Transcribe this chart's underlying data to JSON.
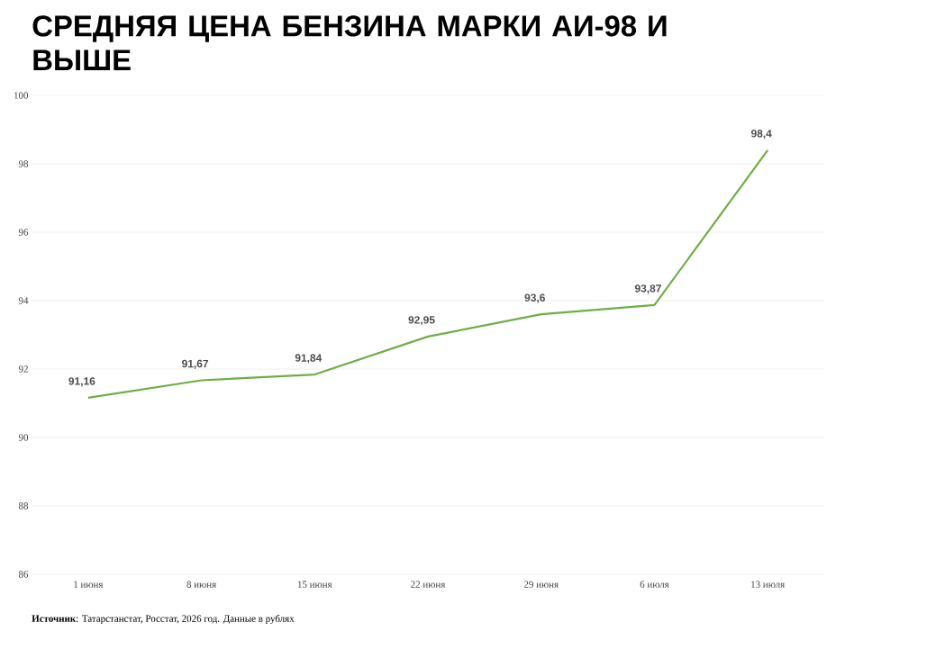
{
  "chart_data": {
    "type": "line",
    "title": "СРЕДНЯЯ ЦЕНА БЕНЗИНА МАРКИ АИ-98 И ВЫШЕ",
    "categories": [
      "1 июня",
      "8 июня",
      "15 июня",
      "22 июня",
      "29 июня",
      "6 июля",
      "13 июля"
    ],
    "series": [
      {
        "color": "#70ad47",
        "values": [
          91.16,
          91.67,
          91.84,
          92.95,
          93.6,
          93.87,
          98.4
        ],
        "value_labels": [
          "91,16",
          "91,67",
          "91,84",
          "92,95",
          "93,6",
          "93,87",
          "98,4"
        ]
      }
    ],
    "ylim": [
      86,
      100
    ],
    "yticks": [
      86,
      88,
      90,
      92,
      94,
      96,
      98,
      100
    ],
    "grid": "y",
    "annotations": [
      "**Источник**: Татарстанстат, Росстат, 2026 год. Данные в рублях"
    ]
  }
}
